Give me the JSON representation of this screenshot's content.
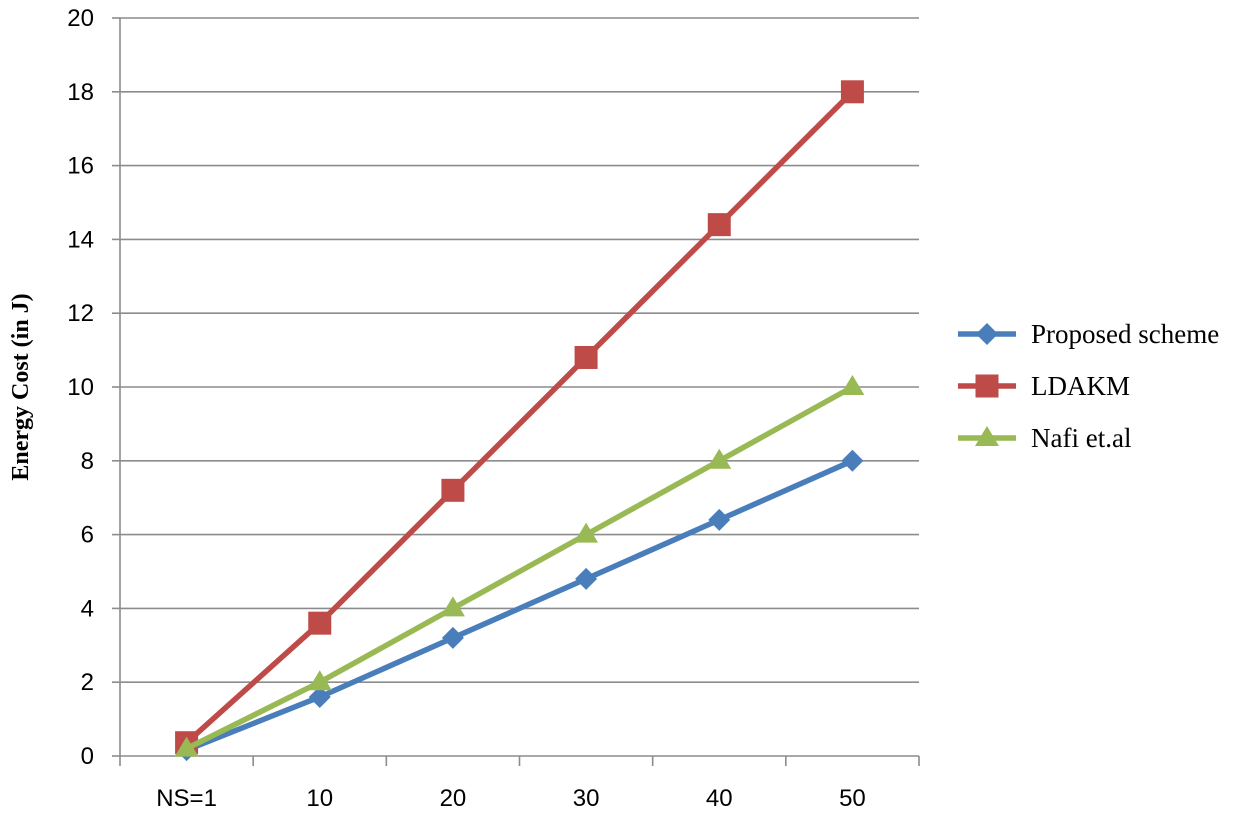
{
  "chart_data": {
    "type": "line",
    "title": "",
    "xlabel": "",
    "ylabel": "Energy Cost (in J)",
    "categories": [
      "NS=1",
      "10",
      "20",
      "30",
      "40",
      "50"
    ],
    "ylim": [
      0,
      20
    ],
    "yticks": [
      0,
      2,
      4,
      6,
      8,
      10,
      12,
      14,
      16,
      18,
      20
    ],
    "grid": "horizontal",
    "legend_position": "right",
    "series": [
      {
        "name": "Proposed scheme",
        "color": "#4a7ebb",
        "marker": "diamond",
        "values": [
          0.16,
          1.6,
          3.2,
          4.8,
          6.4,
          8.0
        ]
      },
      {
        "name": "LDAKM",
        "color": "#be4b48",
        "marker": "square",
        "values": [
          0.36,
          3.6,
          7.2,
          10.8,
          14.4,
          18.0
        ]
      },
      {
        "name": "Nafi et.al",
        "color": "#98b954",
        "marker": "triangle",
        "values": [
          0.2,
          2.0,
          4.0,
          6.0,
          8.0,
          10.0
        ]
      }
    ]
  }
}
